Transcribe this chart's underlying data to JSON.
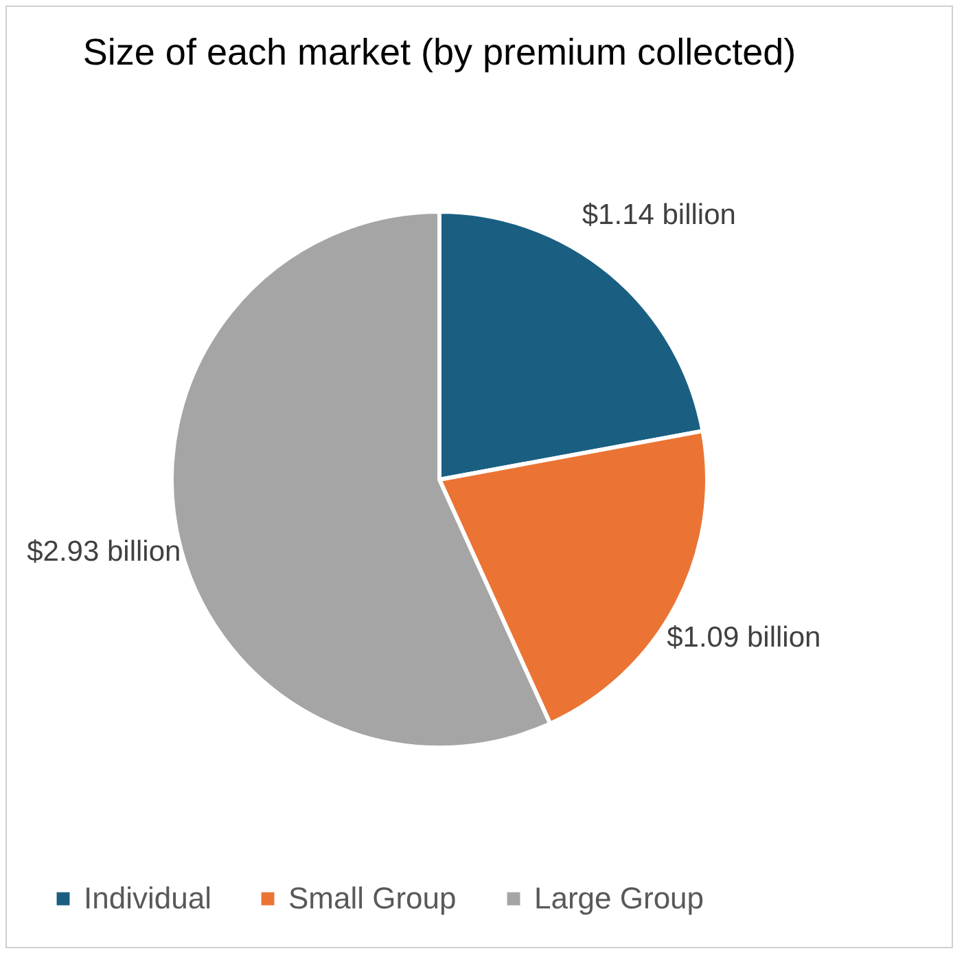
{
  "chart_data": {
    "type": "pie",
    "title": "Size of each market (by premium collected)",
    "categories": [
      "Individual",
      "Small Group",
      "Large Group"
    ],
    "values": [
      1.14,
      1.09,
      2.93
    ],
    "colors": [
      "#1a5f82",
      "#eb7434",
      "#a5a5a5"
    ],
    "value_labels": [
      "$1.14 billion",
      "$1.09 billion",
      "$2.93 billion"
    ],
    "legend": "bottom"
  }
}
